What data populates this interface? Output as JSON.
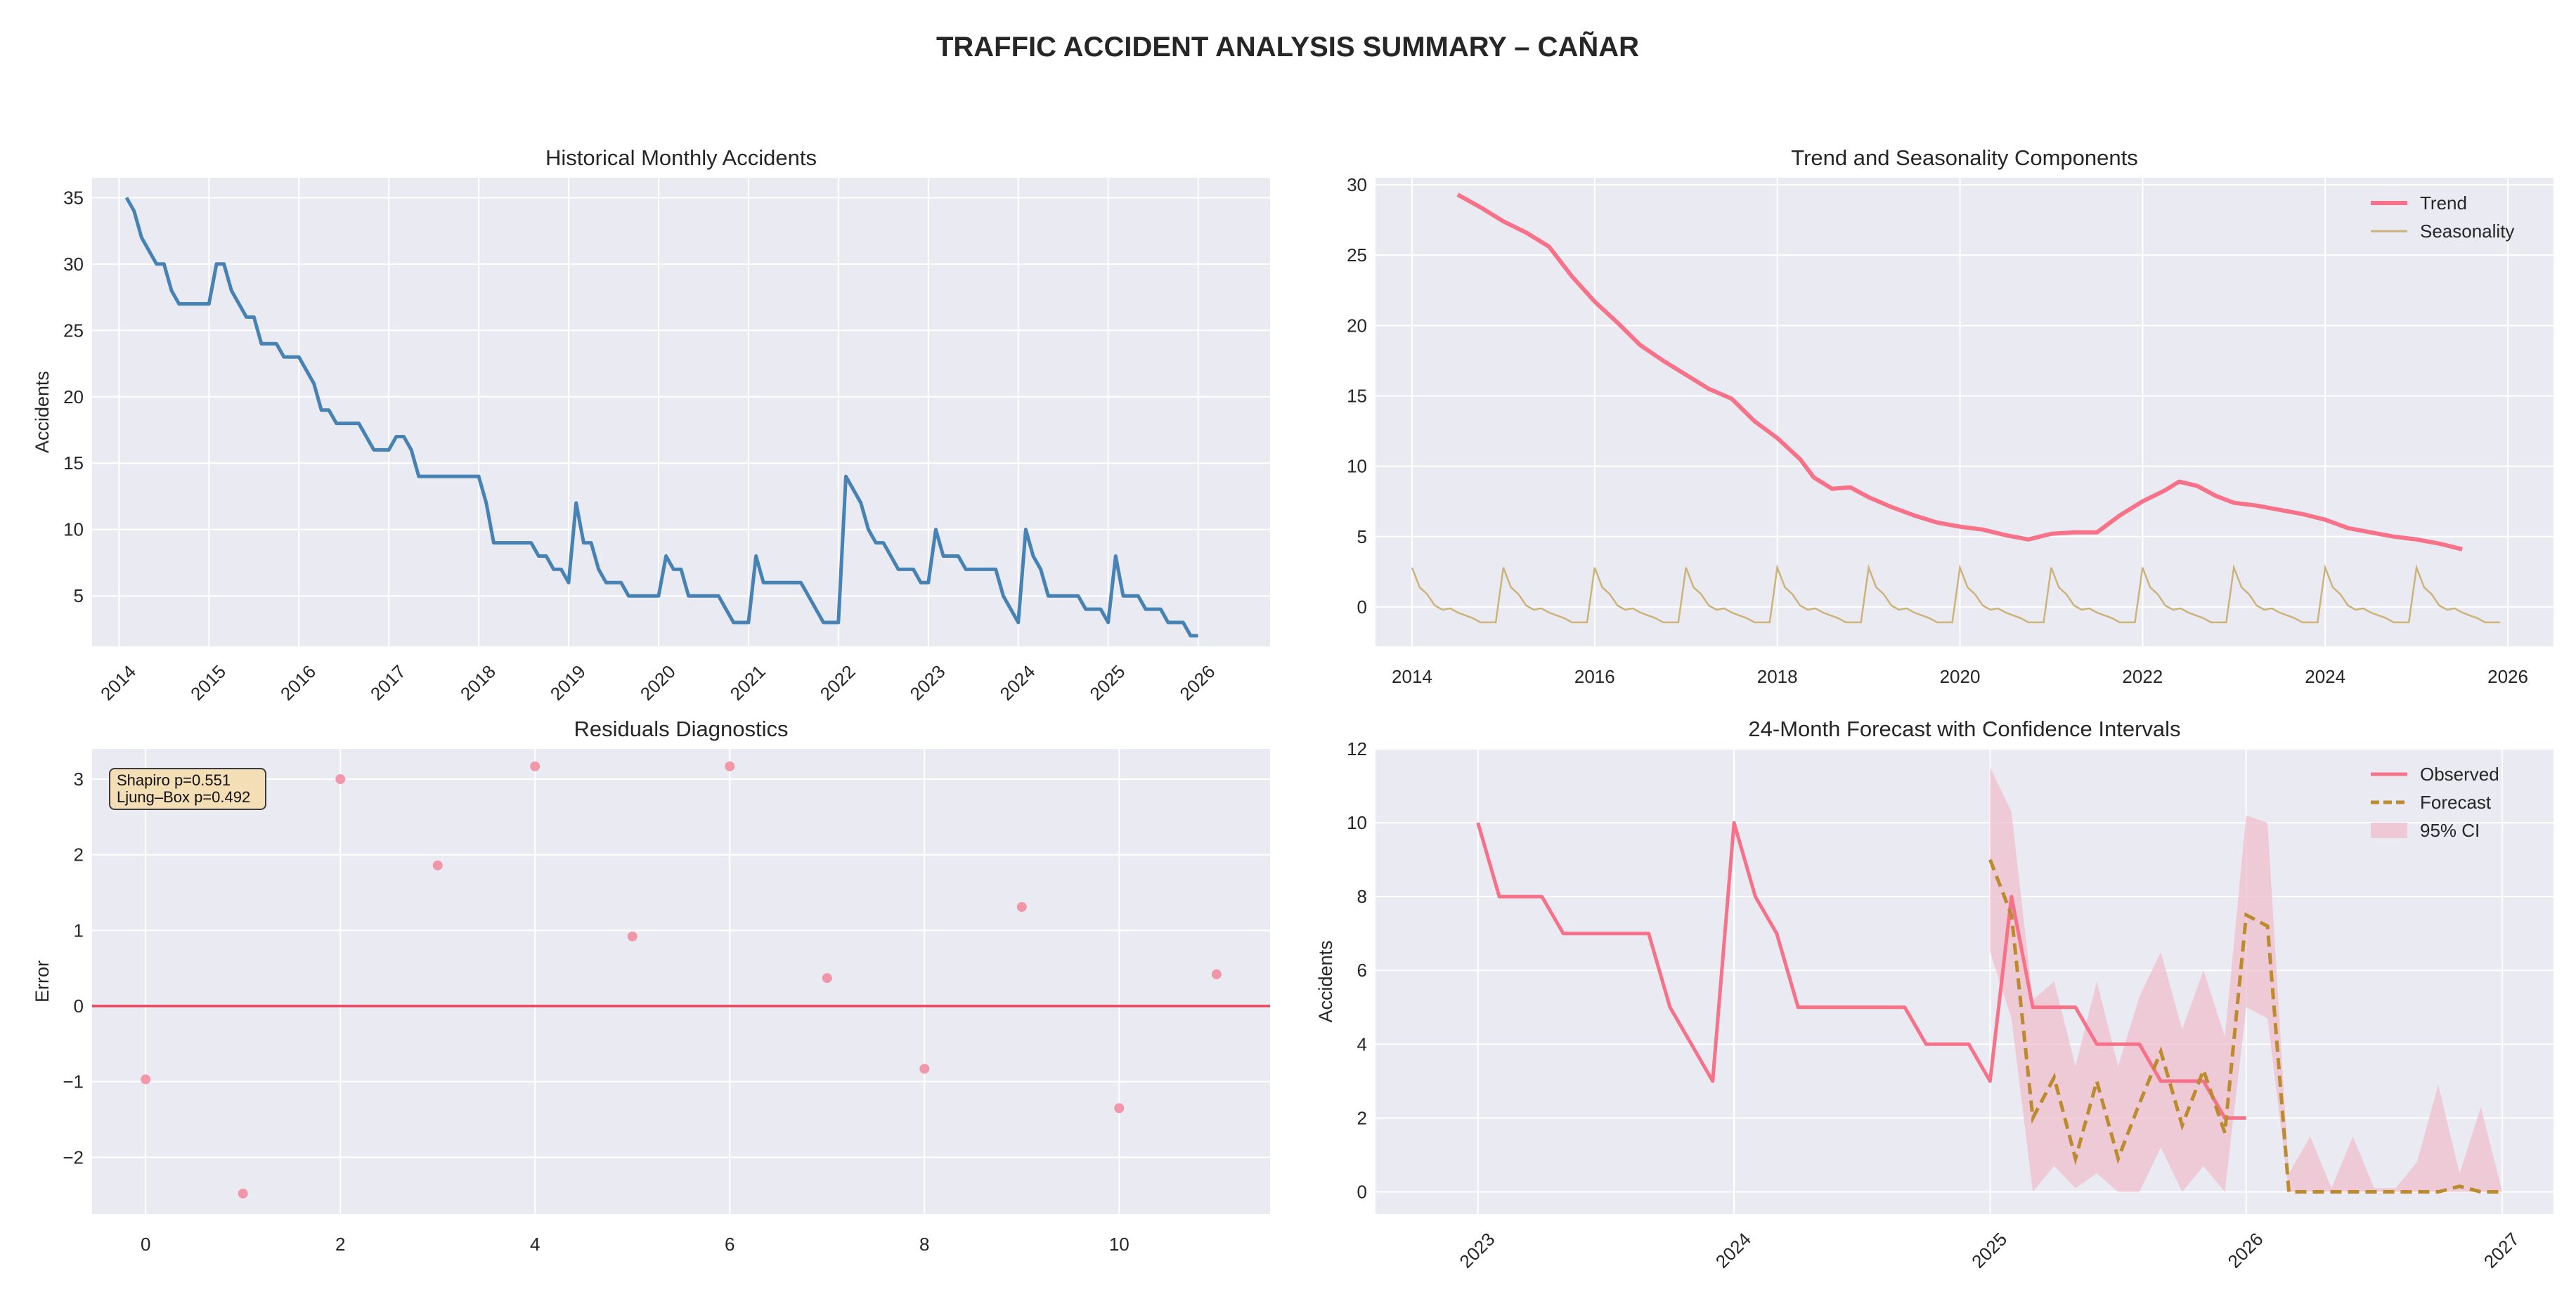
{
  "figure": {
    "title": "TRAFFIC ACCIDENT ANALYSIS SUMMARY – CAÑAR"
  },
  "colors": {
    "panel_bg": "#eaeaf2",
    "grid": "#ffffff",
    "historical_line": "#4682b4",
    "trend_line": "#f77189",
    "seasonality_line": "#cbb37a",
    "residual_points": "#f2879c",
    "zero_line": "#e8455a",
    "observed_line": "#f77189",
    "forecast_line": "#bb8b2d",
    "ci_fill": "#efbfcc",
    "stats_box_fill": "#f5deb3",
    "text": "#262626"
  },
  "chart_data": [
    {
      "id": "historical",
      "type": "line",
      "title": "Historical Monthly Accidents",
      "xlabel": "",
      "ylabel": "Accidents",
      "xlim": [
        2013.7,
        2026.8
      ],
      "ylim": [
        1.2,
        36.5
      ],
      "xticks": [
        2014,
        2015,
        2016,
        2017,
        2018,
        2019,
        2020,
        2021,
        2022,
        2023,
        2024,
        2025,
        2026
      ],
      "xtick_labels": [
        "2014",
        "2015",
        "2016",
        "2017",
        "2018",
        "2019",
        "2020",
        "2021",
        "2022",
        "2023",
        "2024",
        "2025",
        "2026"
      ],
      "xtick_rotation": 45,
      "yticks": [
        5,
        10,
        15,
        20,
        25,
        30,
        35
      ],
      "ytick_labels": [
        "5",
        "10",
        "15",
        "20",
        "25",
        "30",
        "35"
      ],
      "grid": true,
      "series": [
        {
          "x_start": 2014.0833,
          "x_step": 0.08333,
          "values": [
            35,
            34,
            32,
            31,
            30,
            30,
            28,
            27,
            27,
            27,
            27,
            27,
            30,
            30,
            28,
            27,
            26,
            26,
            24,
            24,
            24,
            23,
            23,
            23,
            22,
            21,
            19,
            19,
            18,
            18,
            18,
            18,
            17,
            16,
            16,
            16,
            17,
            17,
            16,
            14,
            14,
            14,
            14,
            14,
            14,
            14,
            14,
            14,
            12,
            9,
            9,
            9,
            9,
            9,
            9,
            8,
            8,
            7,
            7,
            6,
            12,
            9,
            9,
            7,
            6,
            6,
            6,
            5,
            5,
            5,
            5,
            5,
            8,
            7,
            7,
            5,
            5,
            5,
            5,
            5,
            4,
            3,
            3,
            3,
            8,
            6,
            6,
            6,
            6,
            6,
            6,
            5,
            4,
            3,
            3,
            3,
            14,
            13,
            12,
            10,
            9,
            9,
            8,
            7,
            7,
            7,
            6,
            6,
            10,
            8,
            8,
            8,
            7,
            7,
            7,
            7,
            7,
            5,
            4,
            3,
            10,
            8,
            7,
            5,
            5,
            5,
            5,
            5,
            4,
            4,
            4,
            3,
            8,
            5,
            5,
            5,
            4,
            4,
            4,
            3,
            3,
            3,
            2,
            2
          ]
        }
      ]
    },
    {
      "id": "components",
      "type": "line",
      "title": "Trend and Seasonality Components",
      "xlabel": "",
      "ylabel": "",
      "xlim": [
        2013.6,
        2026.5
      ],
      "ylim": [
        -2.8,
        30.5
      ],
      "xticks": [
        2014,
        2016,
        2018,
        2020,
        2022,
        2024,
        2026
      ],
      "xtick_labels": [
        "2014",
        "2016",
        "2018",
        "2020",
        "2022",
        "2024",
        "2026"
      ],
      "xtick_rotation": 0,
      "yticks": [
        0,
        5,
        10,
        15,
        20,
        25,
        30
      ],
      "ytick_labels": [
        "0",
        "5",
        "10",
        "15",
        "20",
        "25",
        "30"
      ],
      "grid": true,
      "legend_placement": "top-right",
      "series": [
        {
          "name": "Trend",
          "key": "trend_line",
          "width": 6,
          "x": [
            2014.5,
            2014.75,
            2015.0,
            2015.25,
            2015.5,
            2015.75,
            2016.0,
            2016.25,
            2016.5,
            2016.75,
            2017.0,
            2017.25,
            2017.5,
            2017.75,
            2018.0,
            2018.25,
            2018.4,
            2018.6,
            2018.8,
            2019.0,
            2019.25,
            2019.5,
            2019.75,
            2020.0,
            2020.25,
            2020.5,
            2020.75,
            2021.0,
            2021.25,
            2021.5,
            2021.75,
            2022.0,
            2022.25,
            2022.4,
            2022.6,
            2022.8,
            2023.0,
            2023.25,
            2023.5,
            2023.75,
            2024.0,
            2024.25,
            2024.5,
            2024.75,
            2025.0,
            2025.25,
            2025.5
          ],
          "y": [
            29.3,
            28.4,
            27.4,
            26.6,
            25.6,
            23.5,
            21.7,
            20.2,
            18.6,
            17.5,
            16.5,
            15.5,
            14.8,
            13.2,
            12.0,
            10.5,
            9.2,
            8.4,
            8.5,
            7.8,
            7.1,
            6.5,
            6.0,
            5.7,
            5.5,
            5.1,
            4.8,
            5.2,
            5.3,
            5.3,
            6.5,
            7.5,
            8.3,
            8.9,
            8.6,
            7.9,
            7.4,
            7.2,
            6.9,
            6.6,
            6.2,
            5.6,
            5.3,
            5.0,
            4.8,
            4.5,
            4.1
          ]
        },
        {
          "name": "Seasonality",
          "key": "seasonality_line",
          "width": 2.5,
          "x_start": 2014.0,
          "x_step": 0.08333,
          "pattern": [
            2.8,
            1.4,
            0.9,
            0.1,
            -0.2,
            -0.1,
            -0.4,
            -0.6,
            -0.8,
            -1.1,
            -1.1,
            -1.1
          ],
          "count": 144
        }
      ]
    },
    {
      "id": "residuals",
      "type": "scatter",
      "title": "Residuals Diagnostics",
      "xlabel": "",
      "ylabel": "Error",
      "xlim": [
        -0.55,
        11.55
      ],
      "ylim": [
        -2.75,
        3.4
      ],
      "xticks": [
        0,
        2,
        4,
        6,
        8,
        10
      ],
      "xtick_labels": [
        "0",
        "2",
        "4",
        "6",
        "8",
        "10"
      ],
      "xtick_rotation": 0,
      "yticks": [
        -2,
        -1,
        0,
        1,
        2,
        3
      ],
      "ytick_labels": [
        "−2",
        "−1",
        "0",
        "1",
        "2",
        "3"
      ],
      "grid": true,
      "hline": 0,
      "annotation": [
        "Shapiro p=0.551",
        "Ljung–Box p=0.492"
      ],
      "x": [
        0,
        1,
        2,
        3,
        4,
        5,
        6,
        7,
        8,
        9,
        10,
        11
      ],
      "y": [
        -0.97,
        -2.48,
        3.0,
        1.86,
        3.17,
        0.92,
        3.17,
        0.37,
        -0.83,
        1.31,
        -1.35,
        0.42
      ]
    },
    {
      "id": "forecast",
      "type": "line",
      "title": "24-Month Forecast with Confidence Intervals",
      "xlabel": "",
      "ylabel": "Accidents",
      "xlim": [
        2022.6,
        2027.2
      ],
      "ylim": [
        -0.6,
        12.0
      ],
      "xticks": [
        2023,
        2024,
        2025,
        2026,
        2027
      ],
      "xtick_labels": [
        "2023",
        "2024",
        "2025",
        "2026",
        "2027"
      ],
      "xtick_rotation": 45,
      "yticks": [
        0,
        2,
        4,
        6,
        8,
        10,
        12
      ],
      "ytick_labels": [
        "0",
        "2",
        "4",
        "6",
        "8",
        "10",
        "12"
      ],
      "grid": true,
      "legend_placement": "top-right",
      "legend": [
        "Observed",
        "Forecast",
        "95% CI"
      ],
      "observed": {
        "x_start": 2023.0,
        "x_step": 0.08333,
        "values": [
          10,
          8,
          8,
          8,
          7,
          7,
          7,
          7,
          7,
          5,
          4,
          3,
          10,
          8,
          7,
          5,
          5,
          5,
          5,
          5,
          5,
          4,
          4,
          4,
          3,
          8,
          5,
          5,
          5,
          4,
          4,
          4,
          3,
          3,
          3,
          2,
          2
        ]
      },
      "forecast": {
        "x_start": 2025.0,
        "x_step": 0.08333,
        "values": [
          9.0,
          7.5,
          2.0,
          3.1,
          0.9,
          3.0,
          0.9,
          2.4,
          3.8,
          1.8,
          3.3,
          1.6,
          7.5,
          7.2,
          0.0,
          0.0,
          0.0,
          0.0,
          0.0,
          0.0,
          0.0,
          0.0,
          0.15,
          0.0,
          0.0
        ]
      },
      "ci": {
        "x_start": 2025.0,
        "x_step": 0.08333,
        "upper": [
          11.5,
          10.3,
          5.2,
          5.7,
          3.4,
          5.7,
          3.4,
          5.3,
          6.5,
          4.4,
          6.0,
          4.2,
          10.2,
          10.0,
          0.5,
          1.5,
          0.1,
          1.5,
          0.1,
          0.1,
          0.8,
          2.9,
          0.5,
          2.3,
          0.0
        ],
        "lower": [
          6.5,
          4.7,
          0.0,
          0.7,
          0.1,
          0.5,
          0.0,
          0.0,
          1.2,
          0.0,
          0.7,
          0.0,
          5.0,
          4.7,
          0.0,
          0.0,
          0.0,
          0.0,
          0.0,
          0.0,
          0.0,
          0.0,
          0.0,
          0.0,
          0.0
        ]
      }
    }
  ]
}
